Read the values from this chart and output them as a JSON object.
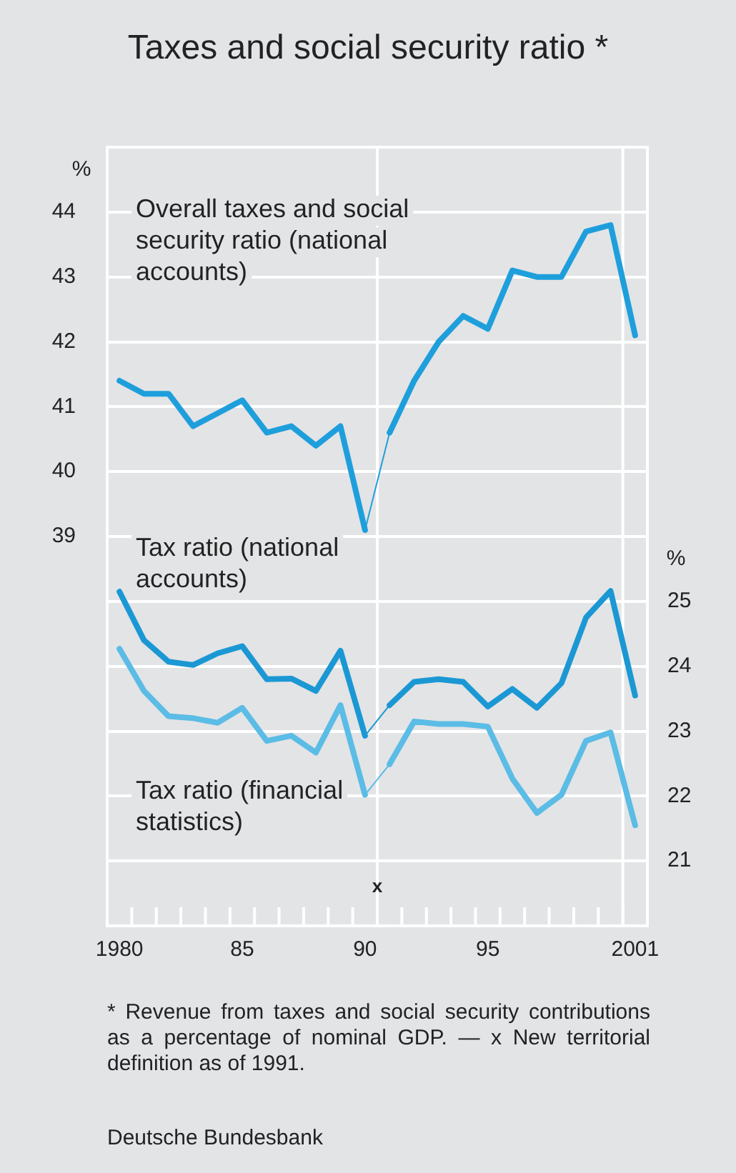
{
  "chart_data": {
    "type": "line",
    "title": "Taxes and social security ratio *",
    "x": [
      1980,
      1981,
      1982,
      1983,
      1984,
      1985,
      1986,
      1987,
      1988,
      1989,
      1990,
      1991,
      1992,
      1993,
      1994,
      1995,
      1996,
      1997,
      1998,
      1999,
      2000,
      2001
    ],
    "series": [
      {
        "name": "Overall taxes and social security ratio (national accounts)",
        "color": "#1e9fdc",
        "values": [
          41.4,
          41.2,
          41.2,
          40.7,
          40.9,
          41.1,
          40.6,
          40.7,
          40.4,
          40.7,
          39.1,
          40.6,
          41.4,
          42.0,
          42.4,
          42.2,
          43.1,
          43.0,
          43.0,
          43.7,
          43.8,
          42.1
        ]
      },
      {
        "name": "Tax ratio (national accounts)",
        "color": "#1b98d4",
        "axis": "y2",
        "values": [
          25.15,
          24.4,
          24.07,
          24.02,
          24.2,
          24.31,
          23.8,
          23.81,
          23.62,
          24.24,
          22.93,
          23.4,
          23.76,
          23.8,
          23.76,
          23.38,
          23.65,
          23.36,
          23.74,
          24.75,
          25.16,
          23.55
        ]
      },
      {
        "name": "Tax ratio (financial statistics)",
        "color": "#5bbce6",
        "axis": "y2",
        "values": [
          24.27,
          23.62,
          23.23,
          23.2,
          23.13,
          23.36,
          22.85,
          22.93,
          22.67,
          23.4,
          22.02,
          22.49,
          23.15,
          23.11,
          23.11,
          23.07,
          22.27,
          21.74,
          22.02,
          22.85,
          22.98,
          21.55
        ]
      }
    ],
    "ylabel": "%",
    "y2label": "%",
    "xlim": [
      1979.5,
      2001.5
    ],
    "xticks": [
      {
        "value": 1980,
        "label": "1980"
      },
      {
        "value": 1980.5,
        "label": null
      },
      {
        "value": 1981.5,
        "label": null
      },
      {
        "value": 1982.5,
        "label": null
      },
      {
        "value": 1983.5,
        "label": null
      },
      {
        "value": 1984.5,
        "label": null
      },
      {
        "value": 1985,
        "label": "85"
      },
      {
        "value": 1985.5,
        "label": null
      },
      {
        "value": 1986.5,
        "label": null
      },
      {
        "value": 1987.5,
        "label": null
      },
      {
        "value": 1988.5,
        "label": null
      },
      {
        "value": 1989.5,
        "label": null
      },
      {
        "value": 1990,
        "label": "90"
      },
      {
        "value": 1990.5,
        "label": null
      },
      {
        "value": 1991.5,
        "label": null
      },
      {
        "value": 1992.5,
        "label": null
      },
      {
        "value": 1993.5,
        "label": null
      },
      {
        "value": 1994.5,
        "label": null
      },
      {
        "value": 1995,
        "label": "95"
      },
      {
        "value": 1995.5,
        "label": null
      },
      {
        "value": 1996.5,
        "label": null
      },
      {
        "value": 1997.5,
        "label": null
      },
      {
        "value": 1998.5,
        "label": null
      },
      {
        "value": 1999.5,
        "label": null
      },
      {
        "value": 2000.5,
        "label": null
      },
      {
        "value": 2001,
        "label": "2001"
      }
    ],
    "ylim": [
      33,
      45
    ],
    "yticks": [
      39,
      40,
      41,
      42,
      43,
      44
    ],
    "y2lim": [
      20,
      32
    ],
    "y2ticks": [
      21,
      22,
      23,
      24,
      25
    ],
    "grid": "y",
    "marker": "none",
    "line_style": "solid",
    "legend": false,
    "ref_lines": [
      {
        "axis": "x",
        "value": 1990.5,
        "color": "#ffffff"
      },
      {
        "axis": "x",
        "value": 2000.5,
        "color": "#ffffff"
      }
    ],
    "annotations": [
      {
        "text": "x",
        "x": 1990.5,
        "y": 33.6
      },
      "* Revenue from taxes and social security contributions as a percentage of nominal GDP. — x New territorial definition as of 1991.",
      "Deutsche Bundesbank"
    ]
  }
}
